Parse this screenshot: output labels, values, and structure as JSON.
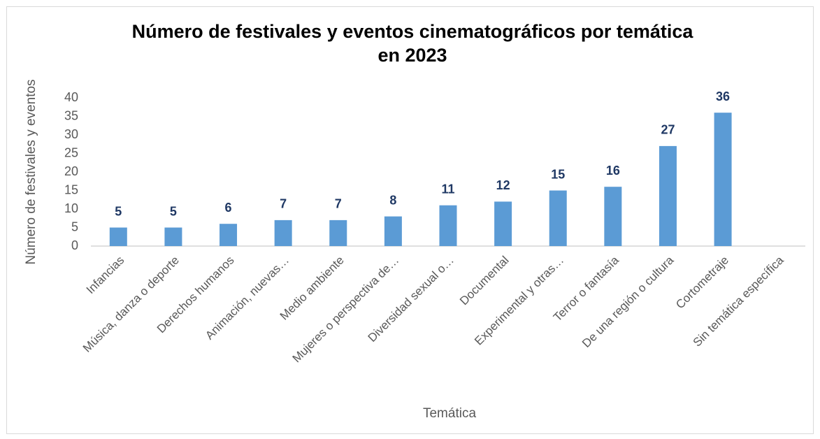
{
  "chart_data": {
    "type": "bar",
    "title": "Número de festivales y eventos cinematográficos por temática en 2023",
    "x_label": "Temática",
    "y_label": "Número de festivales y eventos",
    "categories": [
      "Infancias",
      "Música, danza o deporte",
      "Derechos humanos",
      "Animación, nuevas…",
      "Medio ambiente",
      "Mujeres o perspectiva de…",
      "Diversidad sexual o…",
      "Documental",
      "Experimental y otras…",
      "Terror o fantasía",
      "De una región o cultura",
      "Cortometraje",
      "Sin temática específica"
    ],
    "values": [
      5,
      5,
      6,
      7,
      7,
      8,
      11,
      12,
      15,
      16,
      27,
      36,
      null
    ],
    "color": "#5b9bd5",
    "value_label_color": "#1f3864",
    "ylim": [
      0,
      40
    ],
    "yticks": [
      0,
      5,
      10,
      15,
      20,
      25,
      30,
      35,
      40
    ],
    "grid": false
  }
}
